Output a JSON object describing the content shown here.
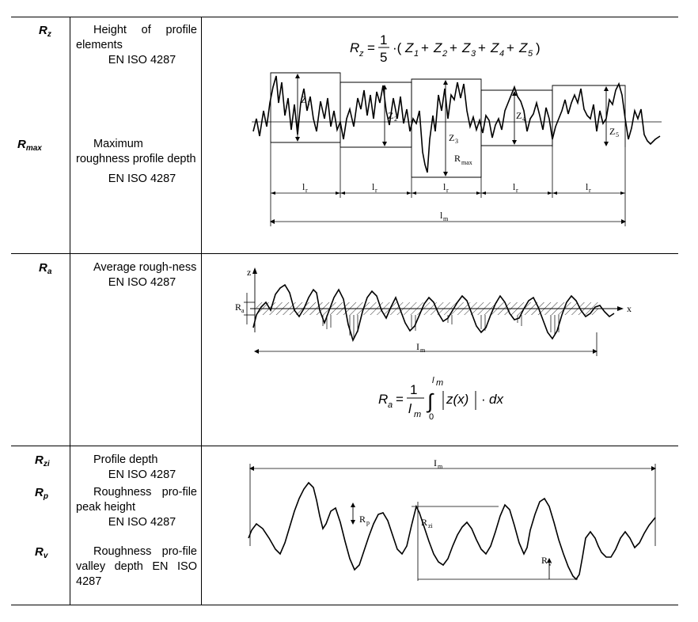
{
  "rows": [
    {
      "entries": [
        {
          "symbol": "R",
          "sub": "z",
          "description": "Height of profile elements",
          "standard": "EN ISO 4287"
        },
        {
          "symbol": "R",
          "sub": "max",
          "description": "Maximum roughness profile depth",
          "standard": "EN ISO 4287"
        }
      ],
      "figure": {
        "formula": {
          "lhs": "R",
          "lhs_sub": "z",
          "num": "1",
          "den": "5",
          "terms": [
            "Z",
            "Z",
            "Z",
            "Z",
            "Z"
          ],
          "term_subs": [
            "1",
            "2",
            "3",
            "4",
            "5"
          ]
        },
        "labels": {
          "z1": "Z",
          "z1s": "1",
          "z2": "Z",
          "z2s": "2",
          "z3": "Z",
          "z3s": "3",
          "z4": "Z",
          "z4s": "4",
          "z5": "Z",
          "z5s": "5",
          "rmax": "R",
          "rmaxs": "max",
          "lr": "l",
          "lrs": "r",
          "lm": "l",
          "lms": "m"
        }
      }
    },
    {
      "entries": [
        {
          "symbol": "R",
          "sub": "a",
          "description": "Average rough-ness",
          "standard": "EN ISO 4287"
        }
      ],
      "figure": {
        "formula": {
          "lhs": "R",
          "lhs_sub": "a",
          "num": "1",
          "den": "l",
          "den_sub": "m",
          "upper": "l",
          "upper_sub": "m",
          "lower": "0",
          "integrand": "z(x)",
          "dx": "dx"
        },
        "labels": {
          "z_axis": "z",
          "x_axis": "x",
          "ra": "R",
          "ras": "a",
          "lm": "I",
          "lms": "m"
        }
      }
    },
    {
      "entries": [
        {
          "symbol": "R",
          "sub": "zi",
          "description": "Profile depth",
          "standard": "EN ISO 4287"
        },
        {
          "symbol": "R",
          "sub": "p",
          "description": "Roughness pro-file peak height",
          "standard": "EN ISO 4287"
        },
        {
          "symbol": "R",
          "sub": "v",
          "description": "Roughness pro-file valley depth EN ISO 4287",
          "standard": ""
        }
      ],
      "figure": {
        "labels": {
          "lm": "I",
          "lms": "m",
          "rp": "R",
          "rps": "p",
          "rzi": "R",
          "rzis": "zi",
          "rv": "R",
          "rvs": "v"
        }
      }
    }
  ]
}
